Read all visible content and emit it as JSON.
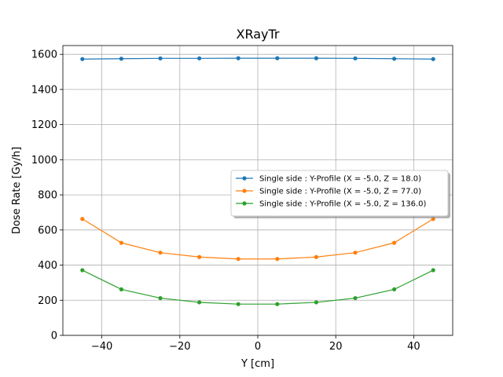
{
  "chart_data": {
    "type": "line",
    "title": "XRayTr",
    "xlabel": "Y [cm]",
    "ylabel": "Dose Rate [Gy/h]",
    "xlim": [
      -50,
      50
    ],
    "ylim": [
      0,
      1650
    ],
    "xticks": [
      -40,
      -20,
      0,
      20,
      40
    ],
    "yticks": [
      0,
      200,
      400,
      600,
      800,
      1000,
      1200,
      1400,
      1600
    ],
    "xtick_labels": [
      "−40",
      "−20",
      "0",
      "20",
      "40"
    ],
    "ytick_labels": [
      "0",
      "200",
      "400",
      "600",
      "800",
      "1000",
      "1200",
      "1400",
      "1600"
    ],
    "grid": true,
    "legend_position": "center-right",
    "x": [
      -45,
      -35,
      -25,
      -15,
      -5,
      5,
      15,
      25,
      35,
      45
    ],
    "series": [
      {
        "name": "Single side : Y-Profile (X = -5.0, Z = 18.0)",
        "color": "#1f77b4",
        "values": [
          1573,
          1575,
          1577,
          1577,
          1578,
          1578,
          1578,
          1577,
          1575,
          1573
        ]
      },
      {
        "name": "Single side : Y-Profile (X = -5.0, Z = 77.0)",
        "color": "#ff7f0e",
        "values": [
          663,
          527,
          471,
          446,
          435,
          435,
          446,
          471,
          527,
          663
        ]
      },
      {
        "name": "Single side : Y-Profile (X = -5.0, Z = 136.0)",
        "color": "#2ca02c",
        "values": [
          371,
          262,
          212,
          188,
          178,
          178,
          188,
          212,
          262,
          371
        ]
      }
    ]
  }
}
